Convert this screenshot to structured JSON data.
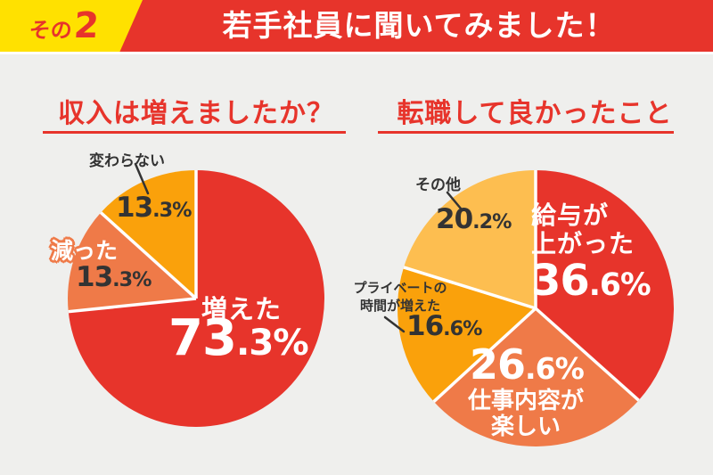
{
  "page": {
    "background": "#EFEFED",
    "text_dark": "#333333"
  },
  "header": {
    "badge_prefix": "その",
    "badge_number": "2",
    "title": "若手社員に聞いてみました！",
    "red": "#E7342B",
    "yellow": "#FFE100"
  },
  "chart_data": [
    {
      "type": "pie",
      "title": "収入は増えましたか？",
      "direction": "clockwise",
      "start_angle": "12-oclock",
      "slices": [
        {
          "label": "増えた",
          "pct": "73.3%",
          "value": 73.3,
          "color": "#E7342B"
        },
        {
          "label": "減った",
          "pct": "13.3%",
          "value": 13.3,
          "color": "#EF7A48"
        },
        {
          "label": "変わらない",
          "pct": "13.3%",
          "value": 13.3,
          "color": "#FAA10B"
        }
      ]
    },
    {
      "type": "pie",
      "title": "転職して良かったこと",
      "direction": "clockwise",
      "start_angle": "12-oclock",
      "slices": [
        {
          "label": "給与が上がった",
          "label_lines": [
            "給与が",
            "上がった"
          ],
          "pct": "36.6%",
          "value": 36.6,
          "color": "#E7342B"
        },
        {
          "label": "仕事内容が楽しい",
          "label_lines": [
            "仕事内容が",
            "楽しい"
          ],
          "pct": "26.6%",
          "value": 26.6,
          "color": "#EF7A48"
        },
        {
          "label": "プライベートの時間が増えた",
          "label_lines": [
            "プライベートの",
            "時間が増えた"
          ],
          "pct": "16.6%",
          "value": 16.6,
          "color": "#FAA10B"
        },
        {
          "label": "その他",
          "pct": "20.2%",
          "value": 20.2,
          "color": "#FDBE50"
        }
      ]
    }
  ]
}
